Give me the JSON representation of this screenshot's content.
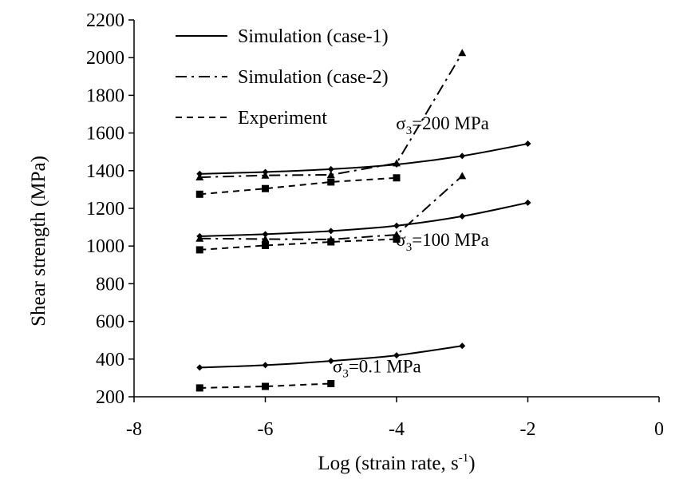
{
  "chart_data": {
    "type": "line",
    "xlabel": "Log (strain rate, s-1)",
    "xlabel_main": "Log (strain rate, s",
    "xlabel_sup": "-1",
    "xlabel_close": ")",
    "ylabel": "Shear strength (MPa)",
    "xlim": [
      -8,
      0
    ],
    "ylim": [
      200,
      2200
    ],
    "x_ticks": [
      -8,
      -6,
      -4,
      -2,
      0
    ],
    "y_ticks": [
      200,
      400,
      600,
      800,
      1000,
      1200,
      1400,
      1600,
      1800,
      2000,
      2200
    ],
    "grid": false,
    "legend_position": "top-left",
    "legend": [
      {
        "label": "Simulation (case-1)",
        "style": "solid"
      },
      {
        "label": "Simulation (case-2)",
        "style": "dashdot"
      },
      {
        "label": "Experiment",
        "style": "dashed"
      }
    ],
    "annotations": [
      {
        "text_main": "σ",
        "text_sub": "3",
        "text_rest": "=200 MPa",
        "x": -3.3,
        "y": 1620
      },
      {
        "text_main": "σ",
        "text_sub": "3",
        "text_rest": "=100 MPa",
        "x": -3.3,
        "y": 1000
      },
      {
        "text_main": "σ",
        "text_sub": "3",
        "text_rest": "=0.1 MPa",
        "x": -4.3,
        "y": 330
      }
    ],
    "series": [
      {
        "group": "σ3=200 MPa",
        "style": "solid",
        "marker": "diamond",
        "x": [
          -7,
          -6,
          -5,
          -4,
          -3,
          -2
        ],
        "y": [
          1383,
          1393,
          1408,
          1433,
          1478,
          1543
        ]
      },
      {
        "group": "σ3=200 MPa",
        "style": "dashdot",
        "marker": "triangle",
        "x": [
          -7,
          -6,
          -5,
          -4,
          -3
        ],
        "y": [
          1365,
          1375,
          1378,
          1440,
          2025
        ]
      },
      {
        "group": "σ3=200 MPa",
        "style": "dashed",
        "marker": "square",
        "x": [
          -7,
          -6,
          -5,
          -4
        ],
        "y": [
          1275,
          1305,
          1340,
          1362
        ]
      },
      {
        "group": "σ3=100 MPa",
        "style": "solid",
        "marker": "diamond",
        "x": [
          -7,
          -6,
          -5,
          -4,
          -3,
          -2
        ],
        "y": [
          1052,
          1063,
          1080,
          1108,
          1158,
          1230
        ]
      },
      {
        "group": "σ3=100 MPa",
        "style": "dashdot",
        "marker": "triangle",
        "x": [
          -7,
          -6,
          -5,
          -4,
          -3
        ],
        "y": [
          1040,
          1037,
          1035,
          1060,
          1372
        ]
      },
      {
        "group": "σ3=100 MPa",
        "style": "dashed",
        "marker": "square",
        "x": [
          -7,
          -6,
          -5,
          -4
        ],
        "y": [
          980,
          1003,
          1022,
          1037
        ]
      },
      {
        "group": "σ3=0.1 MPa",
        "style": "solid",
        "marker": "diamond",
        "x": [
          -7,
          -6,
          -5,
          -4,
          -3
        ],
        "y": [
          355,
          368,
          390,
          420,
          470
        ]
      },
      {
        "group": "σ3=0.1 MPa",
        "style": "dashed",
        "marker": "square",
        "x": [
          -7,
          -6,
          -5
        ],
        "y": [
          247,
          255,
          270
        ]
      }
    ]
  }
}
